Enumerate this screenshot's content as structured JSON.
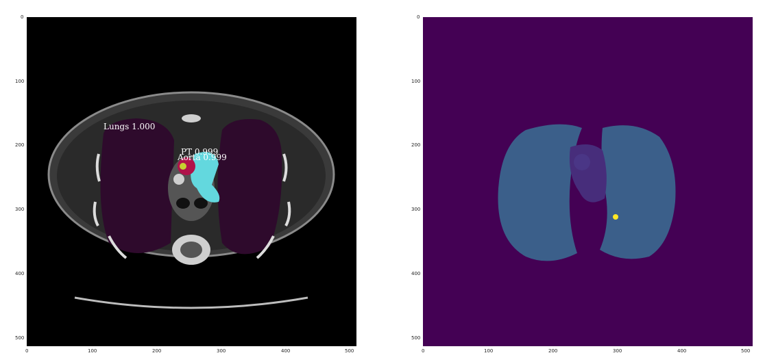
{
  "left_panel": {
    "labels": {
      "lungs": "Lungs 1.000",
      "pt": "PT 0.999",
      "aorta": "Aorta 0.999"
    },
    "x_ticks": [
      "0",
      "100",
      "200",
      "300",
      "400",
      "500"
    ],
    "y_ticks": [
      "0",
      "100",
      "200",
      "300",
      "400",
      "500"
    ]
  },
  "right_panel": {
    "x_ticks": [
      "0",
      "100",
      "200",
      "300",
      "400",
      "500"
    ],
    "y_ticks": [
      "0",
      "100",
      "200",
      "300",
      "400",
      "500"
    ]
  },
  "colors": {
    "background": "#ffffff",
    "ct_black": "#000000",
    "lung_overlay": "#2e0a2c",
    "aorta": "#63d8de",
    "pt": "#b0124a",
    "seg_background": "#440154",
    "seg_lungs": "#3b5f8a",
    "seg_mediastinum": "#472d7b",
    "seg_nodule": "#fde725"
  }
}
